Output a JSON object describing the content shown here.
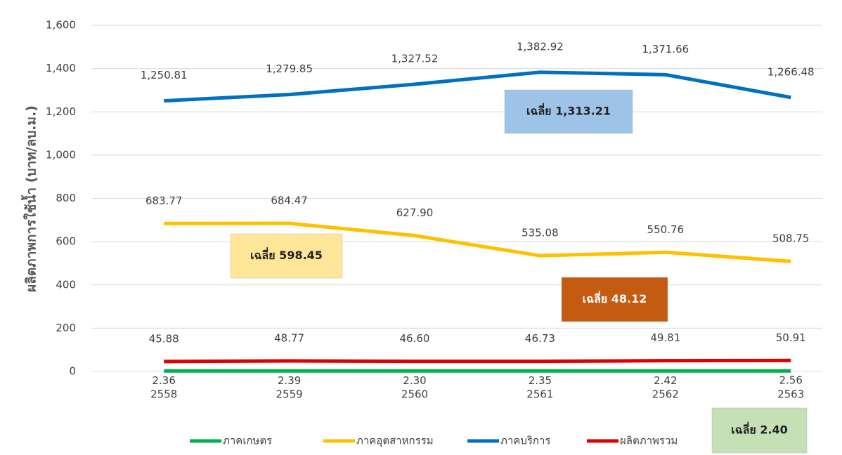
{
  "chart_data": {
    "type": "line",
    "y_label": "ผลิตภาพการใช้น้ำ (บาท/ลบ.ม.)",
    "categories": [
      "2558",
      "2559",
      "2560",
      "2561",
      "2562",
      "2563"
    ],
    "series": [
      {
        "name": "ภาคเกษตร",
        "color": "#00b050",
        "values": [
          2.36,
          2.39,
          2.3,
          2.35,
          2.42,
          2.56
        ],
        "value_labels": [
          "2.36",
          "2.39",
          "2.30",
          "2.35",
          "2.42",
          "2.56"
        ]
      },
      {
        "name": "ภาคอุตสาหกรรม",
        "color": "#ffc000",
        "values": [
          683.77,
          684.47,
          627.9,
          535.08,
          550.76,
          508.75
        ],
        "value_labels": [
          "683.77",
          "684.47",
          "627.90",
          "535.08",
          "550.76",
          "508.75"
        ]
      },
      {
        "name": "ภาคบริการ",
        "color": "#0070c0",
        "values": [
          1250.81,
          1279.85,
          1327.52,
          1382.92,
          1371.66,
          1266.48
        ],
        "value_labels": [
          "1,250.81",
          "1,279.85",
          "1,327.52",
          "1,382.92",
          "1,371.66",
          "1,266.48"
        ]
      },
      {
        "name": "ผลิตภาพรวม",
        "color": "#e00000",
        "values": [
          45.88,
          48.77,
          46.6,
          46.73,
          49.81,
          50.91
        ],
        "value_labels": [
          "45.88",
          "48.77",
          "46.60",
          "46.73",
          "49.81",
          "50.91"
        ]
      }
    ],
    "ylim": [
      0,
      1600
    ],
    "yticks": [
      0,
      200,
      400,
      600,
      800,
      {
        "value": 1000,
        "label": "1,000"
      },
      {
        "value": 1200,
        "label": "1,200"
      },
      {
        "value": 1400,
        "label": "1,400"
      },
      {
        "value": 1600,
        "label": "1,600"
      }
    ],
    "grid": true,
    "legend": "bottom",
    "annotations": [
      {
        "text": "เฉลี่ย 1,313.21",
        "color": "#9dc3e6"
      },
      {
        "text": "เฉลี่ย 598.45",
        "color": "#ffe699"
      },
      {
        "text": "เฉลี่ย 48.12",
        "color": "#c55a11"
      },
      {
        "text": "เฉลี่ย 2.40",
        "color": "#c5e0b4"
      }
    ]
  }
}
